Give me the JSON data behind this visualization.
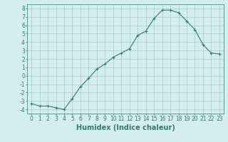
{
  "x": [
    0,
    1,
    2,
    3,
    4,
    5,
    6,
    7,
    8,
    9,
    10,
    11,
    12,
    13,
    14,
    15,
    16,
    17,
    18,
    19,
    20,
    21,
    22,
    23
  ],
  "y": [
    -3.3,
    -3.6,
    -3.6,
    -3.8,
    -4.0,
    -2.7,
    -1.3,
    -0.3,
    0.8,
    1.4,
    2.2,
    2.7,
    3.2,
    4.8,
    5.3,
    6.8,
    7.8,
    7.8,
    7.5,
    6.5,
    5.5,
    3.7,
    2.7,
    2.6
  ],
  "xlabel": "Humidex (Indice chaleur)",
  "ylim": [
    -4.5,
    8.5
  ],
  "xlim": [
    -0.5,
    23.5
  ],
  "yticks": [
    -4,
    -3,
    -2,
    -1,
    0,
    1,
    2,
    3,
    4,
    5,
    6,
    7,
    8
  ],
  "xticks": [
    0,
    1,
    2,
    3,
    4,
    5,
    6,
    7,
    8,
    9,
    10,
    11,
    12,
    13,
    14,
    15,
    16,
    17,
    18,
    19,
    20,
    21,
    22,
    23
  ],
  "line_color": "#2e7d6e",
  "bg_color": "#d4eeee",
  "grid_color": "#aacccc",
  "xlabel_fontsize": 7,
  "tick_fontsize": 5.5
}
